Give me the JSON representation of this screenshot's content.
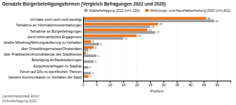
{
  "chart_data": {
    "type": "bar",
    "orientation": "horizontal",
    "title": "Genutzte Bürgerbeteiligungsformen (Vergleich Befragungen 2022 und 2020)",
    "categories": [
      "Ich habe mich noch nicht beteiligt",
      "Teilnahme an Informationsveranstaltungen",
      "Teilnahme an Bürgerbefragungen",
      "durch ehrenamtliches Engagement",
      "direkte Mitteilung/Meinungsäußerung zu Vorhaben",
      "über Ortsteilbürgermeister/Ortsbeiräten",
      "über Praktikanten/Auszubildende des Stadtkreises",
      "Beteiligung an Bauleitplanungen",
      "Einwohneranfragen im Stadtrat",
      "Forum auf DIfu zu spezifischen Themen",
      "bessere Kommunikation zu Vorhaben der Stadt"
    ],
    "series": [
      {
        "name": "Städtebefragung 2022 (n=1.150)",
        "color": "#A0A0A0",
        "values": [
          49,
          25,
          27,
          15,
          6,
          2,
          5,
          4,
          2,
          3,
          0
        ],
        "value_labels": [
          "49",
          "25",
          "27",
          "15",
          "6",
          "2",
          "5",
          "4",
          "2",
          "3",
          null
        ]
      },
      {
        "name": "Wohnungs- und Haushaltserhebung 2020 (n=1.811)",
        "color": "#E87722",
        "values": [
          46,
          28,
          24,
          20,
          3,
          4,
          1,
          0,
          0,
          0,
          2
        ],
        "value_labels": [
          "46",
          "28",
          "24",
          "20",
          "3",
          "4",
          "1",
          null,
          null,
          null,
          "2"
        ]
      }
    ],
    "xlabel": "Prozent",
    "xlim": [
      0,
      55
    ],
    "xticks": [
      0,
      5,
      10,
      15,
      20,
      25,
      30,
      35,
      40,
      45,
      50
    ],
    "grid": true,
    "data_labels": true,
    "legend": "upper right",
    "annotations": [
      "Landeshauptstadt Erfurt",
      "Onlinebefragung 2022"
    ]
  }
}
